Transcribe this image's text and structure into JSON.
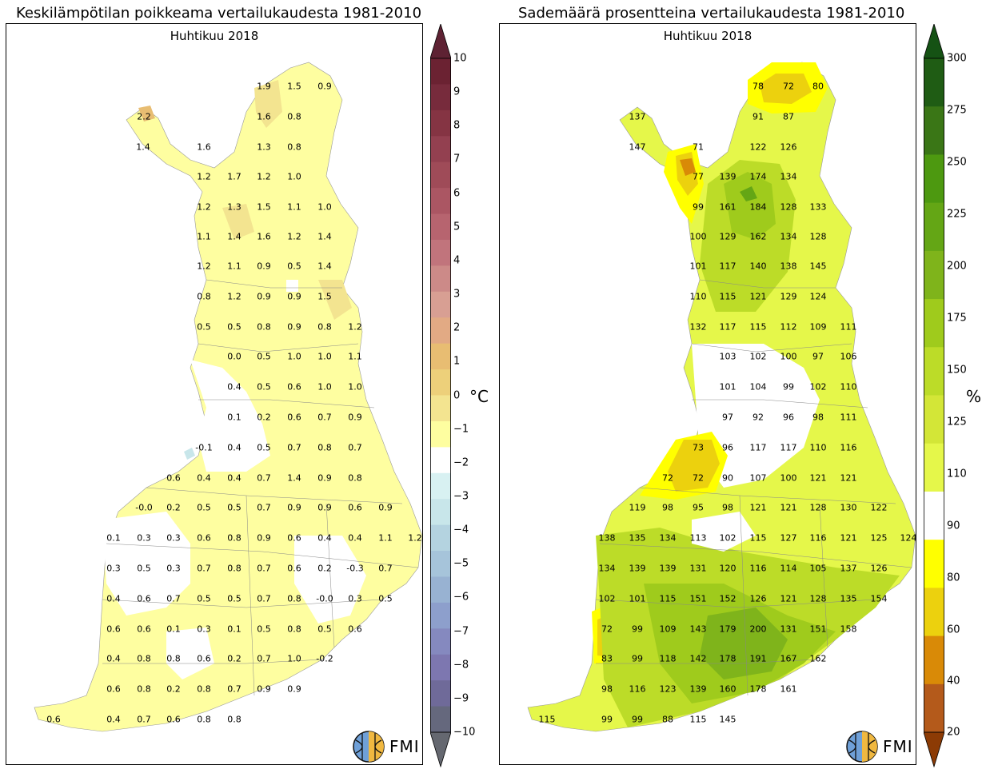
{
  "left": {
    "title": "Keskilämpötilan poikkeama vertailukaudesta 1981-2010",
    "subtitle": "Huhtikuu 2018",
    "unit": "°C",
    "logo_text": "FMI",
    "colorbar_ticks": [
      "10",
      "9",
      "8",
      "7",
      "6",
      "5",
      "4",
      "3",
      "2",
      "1",
      "0",
      "−1",
      "−2",
      "−3",
      "−4",
      "−5",
      "−6",
      "−7",
      "−8",
      "−9",
      "−10"
    ],
    "colorbar_colors": [
      "#6b2232",
      "#772b3c",
      "#853443",
      "#934050",
      "#9f4b58",
      "#ab5663",
      "#b7646f",
      "#c1747c",
      "#cc8a88",
      "#d89f93",
      "#e2aa84",
      "#e8bd72",
      "#edd07a",
      "#f3e490",
      "#fefea0",
      "#ffffff",
      "#d8f1f2",
      "#c8e6ea",
      "#b4d3e0",
      "#a6c4da",
      "#98b2d2",
      "#8d9fcc",
      "#8589bf",
      "#7d77b0",
      "#6f6a99",
      "#65687d"
    ],
    "colorbar_top_color": "#5e2233",
    "colorbar_bottom_color": "#656870",
    "labels": [
      "1.9",
      "1.5",
      "0.9",
      "2.2",
      "1.6",
      "0.8",
      "1.4",
      "1.6",
      "1.3",
      "0.8",
      "1.2",
      "1.7",
      "1.2",
      "1.0",
      "1.2",
      "1.3",
      "1.5",
      "1.1",
      "1.0",
      "1.1",
      "1.4",
      "1.6",
      "1.2",
      "1.4",
      "1.2",
      "1.1",
      "0.9",
      "0.5",
      "1.4",
      "0.8",
      "1.2",
      "0.9",
      "0.9",
      "1.5",
      "0.5",
      "0.5",
      "0.8",
      "0.9",
      "0.8",
      "1.2",
      "0.0",
      "0.5",
      "1.0",
      "1.0",
      "1.1",
      "0.4",
      "0.5",
      "0.6",
      "1.0",
      "1.0",
      "0.1",
      "0.2",
      "0.6",
      "0.7",
      "0.9",
      "-0.1",
      "0.4",
      "0.5",
      "0.7",
      "0.8",
      "0.7",
      "0.6",
      "0.4",
      "0.4",
      "0.7",
      "1.4",
      "0.9",
      "0.8",
      "-0.0",
      "0.2",
      "0.5",
      "0.5",
      "0.7",
      "0.9",
      "0.9",
      "0.6",
      "0.9",
      "0.1",
      "0.3",
      "0.3",
      "0.6",
      "0.8",
      "0.9",
      "0.6",
      "0.4",
      "0.4",
      "1.1",
      "1.2",
      "0.3",
      "0.5",
      "0.3",
      "0.7",
      "0.8",
      "0.7",
      "0.6",
      "0.2",
      "-0.3",
      "0.7",
      "0.4",
      "0.6",
      "0.7",
      "0.5",
      "0.5",
      "0.7",
      "0.8",
      "-0.0",
      "0.3",
      "0.5",
      "0.6",
      "0.6",
      "0.1",
      "0.3",
      "0.1",
      "0.5",
      "0.8",
      "0.5",
      "0.6",
      "0.4",
      "0.8",
      "0.8",
      "0.6",
      "0.2",
      "0.7",
      "1.0",
      "-0.2",
      "0.6",
      "0.8",
      "0.2",
      "0.8",
      "0.7",
      "0.9",
      "0.9",
      "0.6",
      "0.4",
      "0.7",
      "0.6",
      "0.8",
      "0.8"
    ]
  },
  "right": {
    "title": "Sademäärä prosentteina vertailukaudesta 1981-2010",
    "subtitle": "Huhtikuu 2018",
    "unit": "%",
    "logo_text": "FMI",
    "colorbar_ticks": [
      "300",
      "275",
      "250",
      "225",
      "200",
      "175",
      "150",
      "125",
      "110",
      "90",
      "80",
      "60",
      "40",
      "20"
    ],
    "colorbar_colors": [
      "#1f5c14",
      "#3a7616",
      "#4d9910",
      "#64a615",
      "#7fb41b",
      "#9fcb1c",
      "#bcdc28",
      "#d3e637",
      "#e5f74a",
      "#ffffff",
      "#ffff00",
      "#ecd10e",
      "#d98a07",
      "#b45a1b"
    ],
    "colorbar_top_color": "#155214",
    "colorbar_bottom_color": "#8c3b05",
    "labels": [
      "78",
      "72",
      "80",
      "137",
      "91",
      "87",
      "147",
      "71",
      "122",
      "126",
      "77",
      "139",
      "174",
      "134",
      "99",
      "161",
      "184",
      "128",
      "133",
      "100",
      "129",
      "162",
      "134",
      "128",
      "101",
      "117",
      "140",
      "138",
      "145",
      "110",
      "115",
      "121",
      "129",
      "124",
      "132",
      "117",
      "115",
      "112",
      "109",
      "111",
      "103",
      "102",
      "100",
      "97",
      "106",
      "101",
      "104",
      "99",
      "102",
      "110",
      "97",
      "92",
      "96",
      "98",
      "111",
      "73",
      "96",
      "117",
      "117",
      "110",
      "116",
      "72",
      "72",
      "90",
      "107",
      "100",
      "121",
      "121",
      "119",
      "98",
      "95",
      "98",
      "121",
      "121",
      "128",
      "130",
      "122",
      "138",
      "135",
      "134",
      "113",
      "102",
      "115",
      "127",
      "116",
      "121",
      "125",
      "124",
      "134",
      "139",
      "139",
      "131",
      "120",
      "116",
      "114",
      "105",
      "137",
      "126",
      "102",
      "101",
      "115",
      "151",
      "152",
      "126",
      "121",
      "128",
      "135",
      "154",
      "72",
      "99",
      "109",
      "143",
      "179",
      "200",
      "131",
      "151",
      "158",
      "83",
      "99",
      "118",
      "142",
      "178",
      "191",
      "167",
      "162",
      "98",
      "116",
      "123",
      "139",
      "160",
      "178",
      "161",
      "115",
      "99",
      "99",
      "88",
      "115",
      "145"
    ]
  }
}
